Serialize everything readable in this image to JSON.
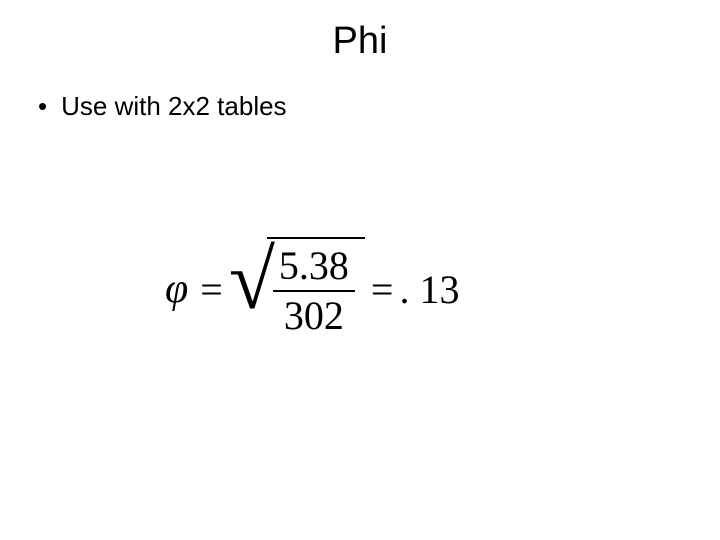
{
  "title": "Phi",
  "bullet": {
    "marker": "•",
    "text": "Use with 2x2 tables"
  },
  "equation": {
    "variable": "φ",
    "equals1": "=",
    "numerator": "5.38",
    "denominator": "302",
    "equals2": "=",
    "result": ". 13"
  },
  "style": {
    "background": "#ffffff",
    "text_color": "#000000",
    "title_fontsize": 38,
    "bullet_fontsize": 26,
    "equation_fontsize": 40,
    "font_body": "Arial",
    "font_math": "Times New Roman"
  }
}
